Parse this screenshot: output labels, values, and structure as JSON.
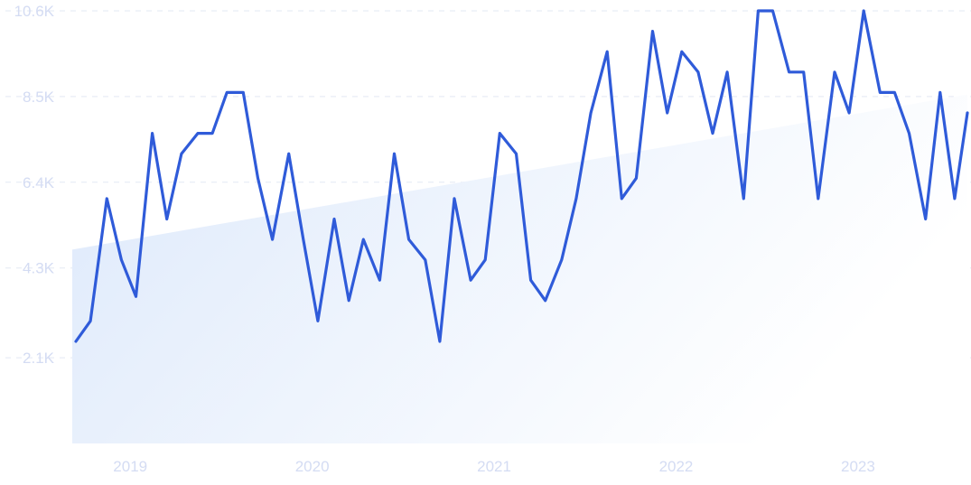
{
  "chart_data": {
    "type": "line",
    "title": "",
    "xlabel": "",
    "ylabel": "",
    "y_ticks": [
      "10.6K",
      "8.5K",
      "6.4K",
      "4.3K",
      "2.1K"
    ],
    "y_tick_values": [
      10600,
      8500,
      6400,
      4300,
      2100
    ],
    "x_ticks": [
      "2019",
      "2020",
      "2021",
      "2022",
      "2023"
    ],
    "x_tick_values": [
      2019.0,
      2020.0,
      2021.0,
      2022.0,
      2023.0
    ],
    "xlim": [
      2018.85,
      2023.77
    ],
    "ylim": [
      0,
      10600
    ],
    "grid": true,
    "trend": {
      "start": 4750,
      "end": 8550
    },
    "colors": {
      "line": "#2f5bd9",
      "area_top": "#dde9fb",
      "area_bottom": "#ffffff",
      "grid": "#e3e8f3",
      "tick": "#d4dcf3"
    },
    "series": [
      {
        "values": [
          [
            2018.87,
            2500
          ],
          [
            2018.95,
            3000
          ],
          [
            2019.04,
            6000
          ],
          [
            2019.12,
            4500
          ],
          [
            2019.2,
            3600
          ],
          [
            2019.29,
            7600
          ],
          [
            2019.37,
            5500
          ],
          [
            2019.45,
            7100
          ],
          [
            2019.54,
            7600
          ],
          [
            2019.62,
            7600
          ],
          [
            2019.7,
            8600
          ],
          [
            2019.79,
            8600
          ],
          [
            2019.87,
            6500
          ],
          [
            2019.95,
            5000
          ],
          [
            2020.04,
            7100
          ],
          [
            2020.12,
            5000
          ],
          [
            2020.2,
            3000
          ],
          [
            2020.29,
            5500
          ],
          [
            2020.37,
            3500
          ],
          [
            2020.45,
            5000
          ],
          [
            2020.54,
            4000
          ],
          [
            2020.62,
            7100
          ],
          [
            2020.7,
            5000
          ],
          [
            2020.79,
            4500
          ],
          [
            2020.87,
            2500
          ],
          [
            2020.95,
            6000
          ],
          [
            2021.04,
            4000
          ],
          [
            2021.12,
            4500
          ],
          [
            2021.2,
            7600
          ],
          [
            2021.29,
            7100
          ],
          [
            2021.37,
            4000
          ],
          [
            2021.45,
            3500
          ],
          [
            2021.54,
            4500
          ],
          [
            2021.62,
            6000
          ],
          [
            2021.7,
            8100
          ],
          [
            2021.79,
            9600
          ],
          [
            2021.87,
            6000
          ],
          [
            2021.95,
            6500
          ],
          [
            2022.04,
            10100
          ],
          [
            2022.12,
            8100
          ],
          [
            2022.2,
            9600
          ],
          [
            2022.29,
            9100
          ],
          [
            2022.37,
            7600
          ],
          [
            2022.45,
            9100
          ],
          [
            2022.54,
            6000
          ],
          [
            2022.62,
            10600
          ],
          [
            2022.7,
            10600
          ],
          [
            2022.79,
            9100
          ],
          [
            2022.87,
            9100
          ],
          [
            2022.95,
            6000
          ],
          [
            2023.04,
            9100
          ],
          [
            2023.12,
            8100
          ],
          [
            2023.2,
            10600
          ],
          [
            2023.29,
            8600
          ],
          [
            2023.37,
            8600
          ],
          [
            2023.45,
            7600
          ],
          [
            2023.54,
            5500
          ],
          [
            2023.62,
            8600
          ],
          [
            2023.7,
            6000
          ],
          [
            2023.77,
            8100
          ]
        ]
      }
    ]
  }
}
